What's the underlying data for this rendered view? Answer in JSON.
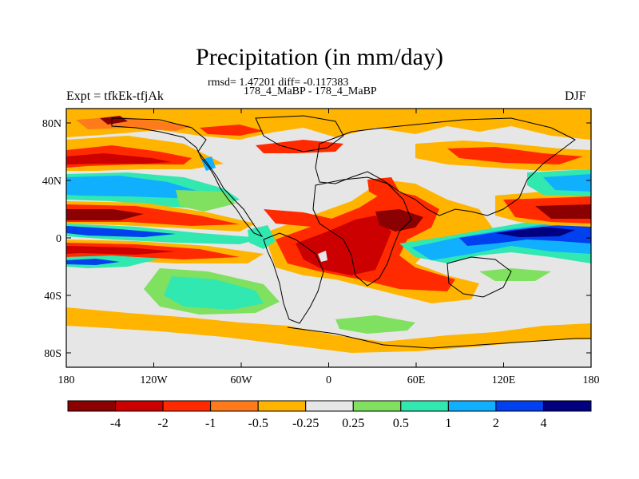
{
  "title": "Precipitation (in mm/day)",
  "stats_line": "rmsd= 1.47201 diff= -0.117383",
  "experiment_name": "178_4_MaBP - 178_4_MaBP",
  "expt_label": "Expt = tfkEk-tfjAk",
  "season": "DJF",
  "axes": {
    "lat_ticks": [
      "80N",
      "40N",
      "0",
      "40S",
      "80S"
    ],
    "lat_values": [
      80,
      40,
      0,
      -40,
      -80
    ],
    "lon_ticks": [
      "180",
      "120W",
      "60W",
      "0",
      "60E",
      "120E",
      "180"
    ],
    "lon_values": [
      -180,
      -120,
      -60,
      0,
      60,
      120,
      180
    ],
    "lon_range": [
      -180,
      180
    ],
    "lat_range": [
      -90,
      90
    ]
  },
  "colorbar": {
    "colors": [
      "#8b0000",
      "#cc0000",
      "#ff2a00",
      "#ff7a1a",
      "#ffb400",
      "#e6e6e6",
      "#80e060",
      "#30e8b0",
      "#10b0ff",
      "#0040ee",
      "#000080"
    ],
    "labels": [
      "-4",
      "-2",
      "-1",
      "-0.5",
      "-0.25",
      "0.25",
      "0.5",
      "1",
      "2",
      "4"
    ]
  },
  "legend_colors": {
    "background_neutral": "#e6e6e6",
    "coastline": "#000000"
  }
}
